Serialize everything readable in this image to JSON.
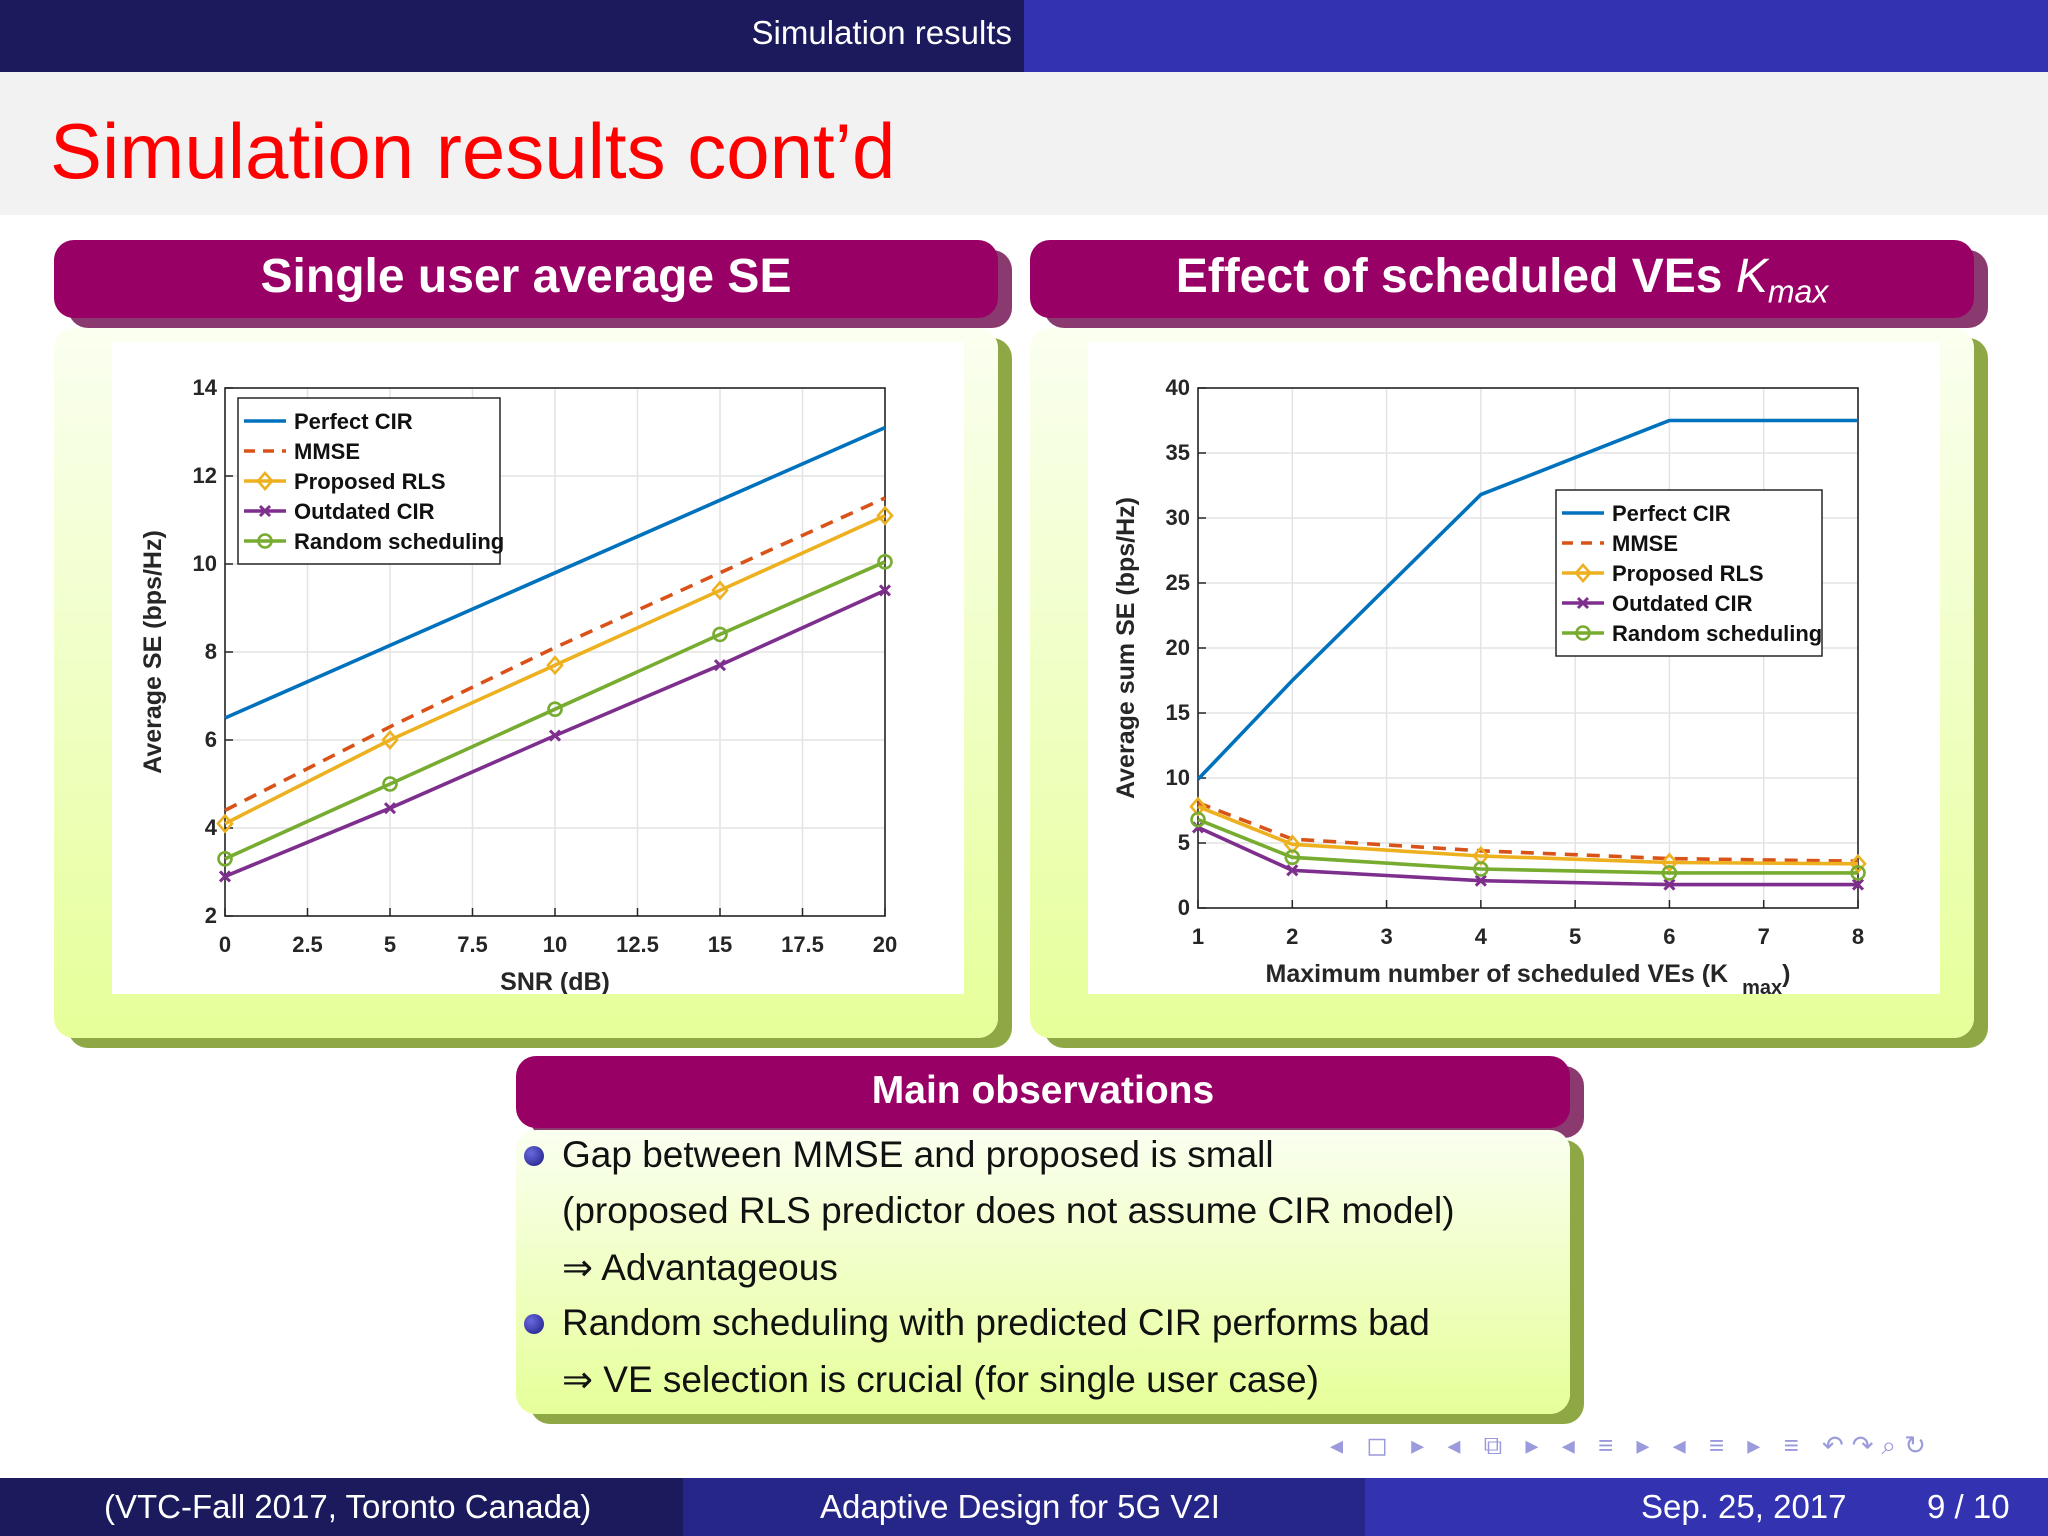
{
  "header": {
    "section": "Simulation results"
  },
  "slide": {
    "title": "Simulation results cont’d"
  },
  "left_block": {
    "title": "Single user average SE"
  },
  "right_block": {
    "title": "Effect of scheduled VEs ",
    "title_sym": "K",
    "title_sub": "max"
  },
  "observations": {
    "title": "Main observations",
    "lines": [
      "Gap between MMSE and proposed is small",
      "(proposed RLS predictor does not assume CIR model)",
      "⇒ Advantageous",
      "Random scheduling with predicted CIR performs bad",
      "⇒ VE selection is crucial (for single user case)"
    ]
  },
  "footer": {
    "left": "(VTC-Fall 2017, Toronto Canada)",
    "center": "Adaptive Design for 5G V2I",
    "date": "Sep. 25, 2017",
    "page": "9 / 10"
  },
  "nav": {
    "symbols": "◂ ◻ ▸ ◂ ⧉ ▸ ◂ ≡ ▸ ◂ ≡ ▸ ≡ ↶↷⌕↻"
  },
  "chart_data": [
    {
      "type": "line",
      "xlabel": "SNR (dB)",
      "ylabel": "Average SE (bps/Hz)",
      "xlim": [
        0,
        20
      ],
      "ylim": [
        2,
        14
      ],
      "xticks": [
        "0",
        "2.5",
        "5",
        "7.5",
        "10",
        "12.5",
        "15",
        "17.5",
        "20"
      ],
      "yticks": [
        "2",
        "4",
        "6",
        "8",
        "10",
        "12",
        "14"
      ],
      "grid": true,
      "legend": "top-left",
      "series": [
        {
          "name": "Perfect CIR",
          "color": "#0072bd",
          "style": "solid",
          "marker": "none",
          "x": [
            0,
            5,
            10,
            15,
            20
          ],
          "y": [
            6.5,
            8.15,
            9.8,
            11.45,
            13.1
          ]
        },
        {
          "name": "MMSE",
          "color": "#d95319",
          "style": "dashed",
          "marker": "none",
          "x": [
            0,
            5,
            10,
            15,
            20
          ],
          "y": [
            4.4,
            6.3,
            8.1,
            9.8,
            11.5
          ]
        },
        {
          "name": "Proposed RLS",
          "color": "#edb120",
          "style": "solid",
          "marker": "diamond",
          "x": [
            0,
            5,
            10,
            15,
            20
          ],
          "y": [
            4.1,
            6.0,
            7.7,
            9.4,
            11.1
          ]
        },
        {
          "name": "Outdated CIR",
          "color": "#7e2f8e",
          "style": "solid",
          "marker": "x",
          "x": [
            0,
            5,
            10,
            15,
            20
          ],
          "y": [
            2.9,
            4.45,
            6.1,
            7.7,
            9.4
          ]
        },
        {
          "name": "Random scheduling",
          "color": "#77ac30",
          "style": "solid",
          "marker": "circle",
          "x": [
            0,
            5,
            10,
            15,
            20
          ],
          "y": [
            3.3,
            5.0,
            6.7,
            8.4,
            10.05
          ]
        }
      ]
    },
    {
      "type": "line",
      "xlabel": "Maximum number of scheduled VEs (K",
      "xlabel_sub": "max",
      "xlabel_close": ")",
      "ylabel": "Average sum SE (bps/Hz)",
      "xlim": [
        1,
        8
      ],
      "ylim": [
        0,
        40
      ],
      "xticks": [
        "1",
        "2",
        "3",
        "4",
        "5",
        "6",
        "7",
        "8"
      ],
      "yticks": [
        "0",
        "5",
        "10",
        "15",
        "20",
        "25",
        "30",
        "35",
        "40"
      ],
      "grid": true,
      "legend": "top-right",
      "series": [
        {
          "name": "Perfect CIR",
          "color": "#0072bd",
          "style": "solid",
          "marker": "none",
          "x": [
            1,
            2,
            4,
            6,
            8
          ],
          "y": [
            9.9,
            17.5,
            31.8,
            37.5,
            37.5
          ]
        },
        {
          "name": "MMSE",
          "color": "#d95319",
          "style": "dashed",
          "marker": "none",
          "x": [
            1,
            2,
            4,
            6,
            8
          ],
          "y": [
            8.1,
            5.3,
            4.4,
            3.8,
            3.6
          ]
        },
        {
          "name": "Proposed RLS",
          "color": "#edb120",
          "style": "solid",
          "marker": "diamond",
          "x": [
            1,
            2,
            4,
            6,
            8
          ],
          "y": [
            7.8,
            4.9,
            4.0,
            3.5,
            3.4
          ]
        },
        {
          "name": "Outdated CIR",
          "color": "#7e2f8e",
          "style": "solid",
          "marker": "x",
          "x": [
            1,
            2,
            4,
            6,
            8
          ],
          "y": [
            6.2,
            2.9,
            2.1,
            1.8,
            1.8
          ]
        },
        {
          "name": "Random scheduling",
          "color": "#77ac30",
          "style": "solid",
          "marker": "circle",
          "x": [
            1,
            2,
            4,
            6,
            8
          ],
          "y": [
            6.8,
            3.9,
            3.0,
            2.7,
            2.7
          ]
        }
      ]
    }
  ]
}
